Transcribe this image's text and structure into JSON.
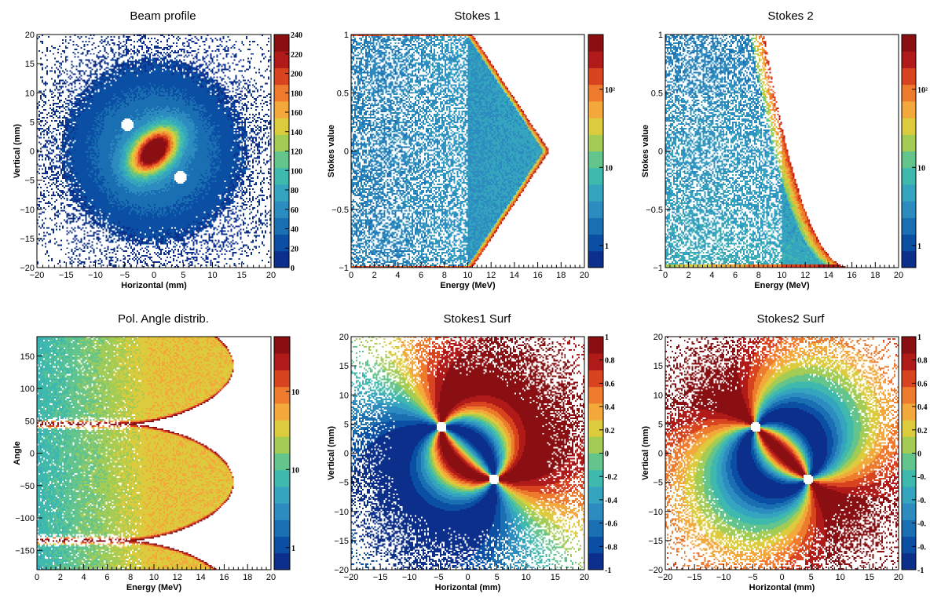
{
  "chart_data": [
    {
      "id": "beam_profile",
      "type": "heatmap",
      "title": "Beam profile",
      "xlabel": "Horizontal (mm)",
      "ylabel": "Vertical (mm)",
      "xlim": [
        -20,
        20
      ],
      "ylim": [
        -20,
        20
      ],
      "xticks": [
        -20,
        -15,
        -10,
        -5,
        0,
        5,
        10,
        15,
        20
      ],
      "yticks": [
        -20,
        -15,
        -10,
        -5,
        0,
        5,
        10,
        15,
        20
      ],
      "palette_ticks": [
        "0",
        "20",
        "40",
        "60",
        "80",
        "100",
        "120",
        "140",
        "160",
        "180",
        "200",
        "220",
        "240"
      ],
      "zrange": [
        0,
        240
      ],
      "features": {
        "peak_center": [
          0,
          0
        ],
        "peak_value": 240,
        "holes": [
          [
            -4.5,
            4.5
          ],
          [
            4.5,
            -4.5
          ]
        ]
      }
    },
    {
      "id": "stokes1",
      "type": "heatmap",
      "title": "Stokes 1",
      "xlabel": "Energy (MeV)",
      "ylabel": "Stokes value",
      "xlim": [
        0,
        20
      ],
      "ylim": [
        -1,
        1
      ],
      "xticks": [
        0,
        2,
        4,
        6,
        8,
        10,
        12,
        14,
        16,
        18,
        20
      ],
      "yticks": [
        -1,
        -0.5,
        0,
        0.5,
        1
      ],
      "palette_ticks": [
        "1",
        "10",
        "10²"
      ],
      "zscale": "log",
      "features": {
        "band_edge_energy": 10.4,
        "endpoint_energy": 17
      }
    },
    {
      "id": "stokes2",
      "type": "heatmap",
      "title": "Stokes 2",
      "xlabel": "Energy (MeV)",
      "ylabel": "Stokes value",
      "xlim": [
        0,
        20
      ],
      "ylim": [
        -1,
        1
      ],
      "xticks": [
        0,
        2,
        4,
        6,
        8,
        10,
        12,
        14,
        16,
        18,
        20
      ],
      "yticks": [
        -1,
        -0.5,
        0,
        0.5,
        1
      ],
      "palette_ticks": [
        "1",
        "10",
        "10²"
      ],
      "zscale": "log",
      "features": {
        "top_edge_energy": 8.5,
        "endpoint_energy": 17
      }
    },
    {
      "id": "pol_angle",
      "type": "heatmap",
      "title": "Pol. Angle distrib.",
      "xlabel": "Energy (MeV)",
      "ylabel": "Angle",
      "xlim": [
        0,
        20
      ],
      "ylim": [
        -180,
        180
      ],
      "xticks": [
        0,
        2,
        4,
        6,
        8,
        10,
        12,
        14,
        16,
        18,
        20
      ],
      "yticks": [
        -150,
        -100,
        -50,
        0,
        50,
        100,
        150
      ],
      "palette_ticks": [
        "1",
        "10",
        "10"
      ],
      "zscale": "log",
      "features": {
        "tips": [
          [
            16.8,
            135
          ],
          [
            16.8,
            -45
          ]
        ]
      }
    },
    {
      "id": "stokes1_surf",
      "type": "heatmap",
      "title": "Stokes1 Surf",
      "xlabel": "Horizontal (mm)",
      "ylabel": "Vertical (mm)",
      "xlim": [
        -20,
        20
      ],
      "ylim": [
        -20,
        20
      ],
      "xticks": [
        -20,
        -15,
        -10,
        -5,
        0,
        5,
        10,
        15,
        20
      ],
      "yticks": [
        -20,
        -15,
        -10,
        -5,
        0,
        5,
        10,
        15,
        20
      ],
      "palette_ticks": [
        "1",
        "0.8",
        "0.6",
        "0.4",
        "0.2",
        "0",
        "-0.2",
        "-0.4",
        "-0.6",
        "-0.8",
        "-1"
      ],
      "zrange": [
        -1,
        1
      ],
      "features": {
        "singularities": [
          [
            -4.5,
            4.5
          ],
          [
            4.5,
            -4.5
          ]
        ]
      }
    },
    {
      "id": "stokes2_surf",
      "type": "heatmap",
      "title": "Stokes2 Surf",
      "xlabel": "Horizontal (mm)",
      "ylabel": "Vertical (mm)",
      "xlim": [
        -20,
        20
      ],
      "ylim": [
        -20,
        20
      ],
      "xticks": [
        -20,
        -15,
        -10,
        -5,
        0,
        5,
        10,
        15,
        20
      ],
      "yticks": [
        -20,
        -15,
        -10,
        -5,
        0,
        5,
        10,
        15,
        20
      ],
      "palette_ticks": [
        "1",
        "0.8",
        "0.6",
        "0.4",
        "0.2",
        "0",
        "-0.",
        "-0.",
        "-0.",
        "-0.",
        "-1"
      ],
      "zrange": [
        -1,
        1
      ],
      "features": {
        "singularities": [
          [
            -4.5,
            4.5
          ],
          [
            4.5,
            -4.5
          ]
        ]
      }
    }
  ],
  "colors": {
    "palette": [
      "#0b2f8a",
      "#0a4fa3",
      "#1a6fb3",
      "#2c8cbf",
      "#35a5bf",
      "#3fb9ad",
      "#63c58c",
      "#a3cc55",
      "#dccb3c",
      "#f2a83a",
      "#ee7a2d",
      "#d8441f",
      "#b01a18",
      "#8a0f12"
    ],
    "background": "#ffffff",
    "axis": "#000000"
  }
}
